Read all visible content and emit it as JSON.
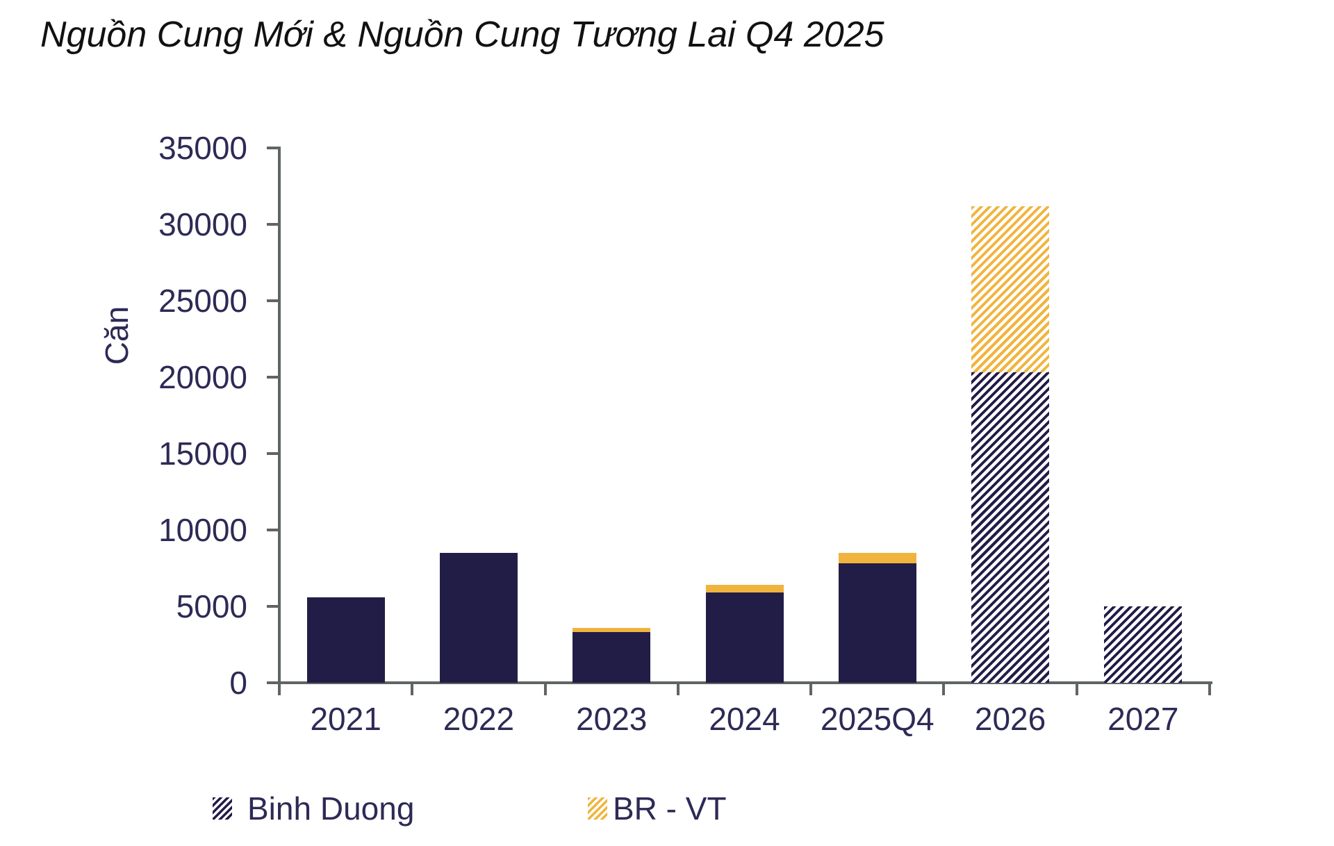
{
  "title": "Nguồn Cung Mới & Nguồn Cung Tương Lai Q4 2025",
  "chart_data": {
    "type": "bar",
    "stacked": true,
    "title": "Nguồn Cung Mới & Nguồn Cung Tương Lai Q4 2025",
    "categories": [
      "2021",
      "2022",
      "2023",
      "2024",
      "2025Q4",
      "2026",
      "2027"
    ],
    "series": [
      {
        "name": "Binh Duong",
        "color": "#221d47",
        "hatch_style": "diagonal",
        "values": [
          5600,
          8500,
          3300,
          5900,
          7800,
          20300,
          5000
        ]
      },
      {
        "name": "BR - VT",
        "color": "#f0b43e",
        "hatch_style": "diagonal",
        "values": [
          0,
          0,
          270,
          500,
          700,
          10900,
          0
        ]
      }
    ],
    "hatched_categories": [
      "2026",
      "2027"
    ],
    "xlabel": "",
    "ylabel": "Căn",
    "ylim": [
      0,
      35000
    ],
    "ytick_step": 5000,
    "ytick_labels": [
      "0",
      "5000",
      "10000",
      "15000",
      "20000",
      "25000",
      "30000",
      "35000"
    ],
    "grid": false,
    "legend_position": "bottom"
  },
  "legend": {
    "items": [
      {
        "label": "Binh Duong",
        "color": "#221d47"
      },
      {
        "label": "BR - VT",
        "color": "#f0b43e"
      }
    ]
  },
  "colors": {
    "bar_navy": "#221d47",
    "bar_orange": "#f0b43e",
    "axis_gray": "#5f6464",
    "label_navy": "#2d2a55",
    "title_black": "#111111",
    "background": "#ffffff"
  }
}
